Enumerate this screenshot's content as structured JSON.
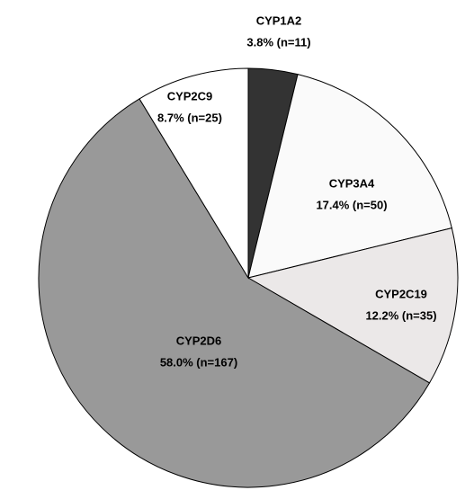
{
  "chart_data": {
    "type": "pie",
    "categories": [
      "CYP1A2",
      "CYP3A4",
      "CYP2C19",
      "CYP2D6",
      "CYP2C9"
    ],
    "values": [
      3.8,
      17.4,
      12.2,
      58.0,
      8.7
    ],
    "value_labels": [
      "3.8% (n=11)",
      "17.4% (n=50)",
      "12.2% (n=35)",
      "58.0% (n=167)",
      "8.7% (n=25)"
    ],
    "colors": [
      "#333333",
      "#fafafa",
      "#ebe8e8",
      "#999999",
      "#ffffff"
    ]
  }
}
